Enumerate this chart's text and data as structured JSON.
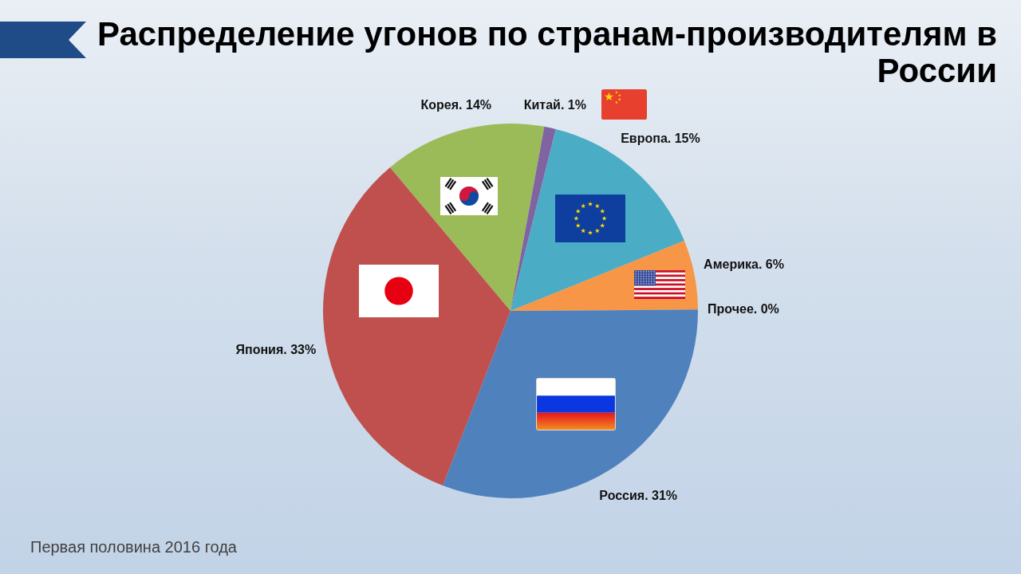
{
  "chart_data": {
    "type": "pie",
    "title": "Распределение угонов по странам-производителям в России",
    "categories": [
      "Корея.",
      "Китай.",
      "Европа.",
      "Америка.",
      "Прочее.",
      "Россия.",
      "Япония."
    ],
    "values": [
      14,
      1,
      15,
      6,
      0,
      31,
      33
    ],
    "colors": [
      "#9bbb59",
      "#8064a2",
      "#4bacc6",
      "#f79646",
      "#2c4d75",
      "#4f81bd",
      "#c0504d"
    ],
    "value_labels": [
      "14%",
      "1%",
      "15%",
      "6%",
      "0%",
      "31%",
      "33%"
    ],
    "annotations": [
      "Первая половина 2016 года"
    ]
  }
}
